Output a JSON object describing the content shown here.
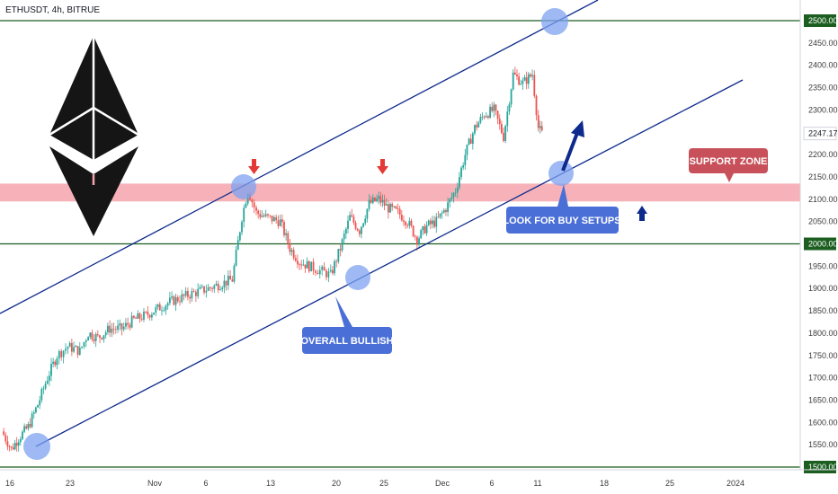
{
  "chart_data": {
    "type": "candlestick",
    "symbol_line": "ETHUSDT, 4h, BITRUE",
    "yaxis": {
      "min": 1500,
      "max": 2500,
      "ticks": [
        "2450.00",
        "2400.00",
        "2350.00",
        "2300.00",
        "2200.00",
        "2150.00",
        "2100.00",
        "2050.00",
        "1950.00",
        "1900.00",
        "1850.00",
        "1800.00",
        "1750.00",
        "1700.00",
        "1650.00",
        "1600.00",
        "1550.00"
      ],
      "highlighted_labels": [
        {
          "text": "2500.00",
          "value": 2500
        },
        {
          "text": "2247.17",
          "value": 2247.17
        },
        {
          "text": "2000.00",
          "value": 2000
        },
        {
          "text": "1500.00",
          "value": 1500
        }
      ]
    },
    "xaxis": {
      "ticks": [
        "16",
        "23",
        "Nov",
        "6",
        "13",
        "20",
        "25",
        "Dec",
        "6",
        "11",
        "18",
        "25",
        "2024"
      ]
    },
    "levels": [
      {
        "name": "resistance",
        "value": 2500,
        "color": "#1b5e20"
      },
      {
        "name": "support",
        "value": 2000,
        "color": "#1b5e20"
      },
      {
        "name": "base",
        "value": 1500,
        "color": "#1b5e20"
      }
    ],
    "support_zone": {
      "low": 2095,
      "high": 2135,
      "color": "#f4a4ac"
    },
    "channel_color": "#0d2a8c",
    "annotations": {
      "support_zone": "SUPPORT ZONE",
      "buy_setups": "LOOK FOR BUY SETUPS",
      "bullish": "OVERALL BULLISH"
    },
    "colors": {
      "up": "#26a69a",
      "down": "#ef5350",
      "box_blue": "#4a6fd6",
      "box_red": "#c7505a",
      "circle": "#7ea1f0"
    },
    "series": [
      {
        "t": 0,
        "v": 1580
      },
      {
        "t": 8,
        "v": 1540
      },
      {
        "t": 14,
        "v": 1565
      },
      {
        "t": 22,
        "v": 1590
      },
      {
        "t": 30,
        "v": 1640
      },
      {
        "t": 38,
        "v": 1700
      },
      {
        "t": 46,
        "v": 1750
      },
      {
        "t": 55,
        "v": 1770
      },
      {
        "t": 65,
        "v": 1760
      },
      {
        "t": 72,
        "v": 1800
      },
      {
        "t": 80,
        "v": 1790
      },
      {
        "t": 90,
        "v": 1810
      },
      {
        "t": 100,
        "v": 1810
      },
      {
        "t": 110,
        "v": 1830
      },
      {
        "t": 120,
        "v": 1840
      },
      {
        "t": 130,
        "v": 1855
      },
      {
        "t": 140,
        "v": 1870
      },
      {
        "t": 150,
        "v": 1880
      },
      {
        "t": 160,
        "v": 1890
      },
      {
        "t": 172,
        "v": 1900
      },
      {
        "t": 182,
        "v": 1910
      },
      {
        "t": 192,
        "v": 1920
      },
      {
        "t": 200,
        "v": 2060
      },
      {
        "t": 205,
        "v": 2120
      },
      {
        "t": 212,
        "v": 2070
      },
      {
        "t": 220,
        "v": 2060
      },
      {
        "t": 232,
        "v": 2050
      },
      {
        "t": 240,
        "v": 1990
      },
      {
        "t": 248,
        "v": 1960
      },
      {
        "t": 256,
        "v": 1950
      },
      {
        "t": 265,
        "v": 1940
      },
      {
        "t": 274,
        "v": 1930
      },
      {
        "t": 282,
        "v": 1990
      },
      {
        "t": 290,
        "v": 2060
      },
      {
        "t": 298,
        "v": 2030
      },
      {
        "t": 306,
        "v": 2090
      },
      {
        "t": 314,
        "v": 2100
      },
      {
        "t": 322,
        "v": 2080
      },
      {
        "t": 330,
        "v": 2070
      },
      {
        "t": 338,
        "v": 2050
      },
      {
        "t": 346,
        "v": 2010
      },
      {
        "t": 354,
        "v": 2040
      },
      {
        "t": 362,
        "v": 2050
      },
      {
        "t": 370,
        "v": 2080
      },
      {
        "t": 378,
        "v": 2120
      },
      {
        "t": 386,
        "v": 2200
      },
      {
        "t": 394,
        "v": 2260
      },
      {
        "t": 402,
        "v": 2290
      },
      {
        "t": 410,
        "v": 2300
      },
      {
        "t": 418,
        "v": 2240
      },
      {
        "t": 426,
        "v": 2380
      },
      {
        "t": 434,
        "v": 2360
      },
      {
        "t": 442,
        "v": 2380
      },
      {
        "t": 447,
        "v": 2260
      },
      {
        "t": 450,
        "v": 2247
      }
    ]
  }
}
